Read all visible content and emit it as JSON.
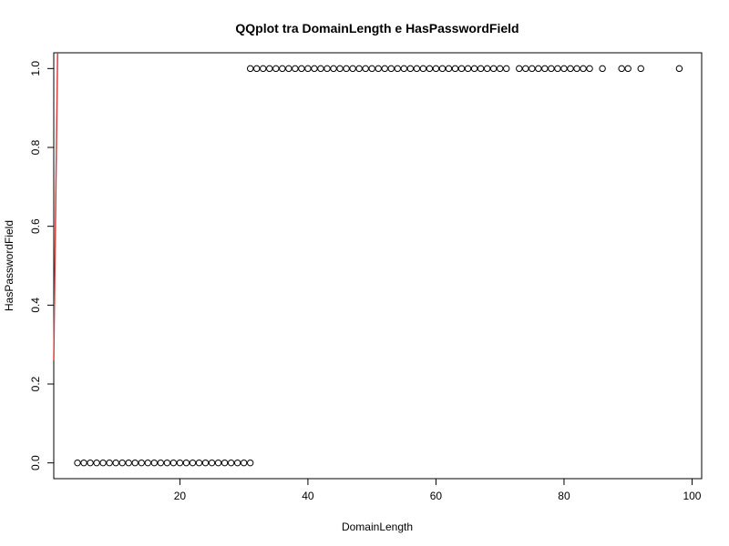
{
  "chart_data": {
    "type": "scatter",
    "title": "QQplot tra DomainLength e HasPasswordField",
    "xlabel": "DomainLength",
    "ylabel": "HasPasswordField",
    "xlim": [
      0.3,
      101.5
    ],
    "ylim": [
      -0.04,
      1.04
    ],
    "x_ticks": [
      20,
      40,
      60,
      80,
      100
    ],
    "y_ticks": [
      0.0,
      0.2,
      0.4,
      0.6,
      0.8,
      1.0
    ],
    "x_tick_labels": [
      "20",
      "40",
      "60",
      "80",
      "100"
    ],
    "y_tick_labels": [
      "0.0",
      "0.2",
      "0.4",
      "0.6",
      "0.8",
      "1.0"
    ],
    "grid": false,
    "series": [
      {
        "points_y0": {
          "y": 0,
          "x": [
            4,
            5,
            6,
            7,
            8,
            9,
            10,
            11,
            12,
            13,
            14,
            15,
            16,
            17,
            18,
            19,
            20,
            21,
            22,
            23,
            24,
            25,
            26,
            27,
            28,
            29,
            30,
            31
          ]
        },
        "points_y1": {
          "y": 1,
          "x": [
            31,
            32,
            33,
            34,
            35,
            36,
            37,
            38,
            39,
            40,
            41,
            42,
            43,
            44,
            45,
            46,
            47,
            48,
            49,
            50,
            51,
            52,
            53,
            54,
            55,
            56,
            57,
            58,
            59,
            60,
            61,
            62,
            63,
            64,
            65,
            66,
            67,
            68,
            69,
            70,
            71,
            73,
            74,
            75,
            76,
            77,
            78,
            79,
            80,
            81,
            82,
            83,
            84,
            86,
            89,
            90,
            92,
            98
          ]
        }
      }
    ],
    "reference_line": {
      "color": "#d94040",
      "from": [
        0.3,
        0.26
      ],
      "to": [
        0.9,
        1.04
      ]
    }
  }
}
